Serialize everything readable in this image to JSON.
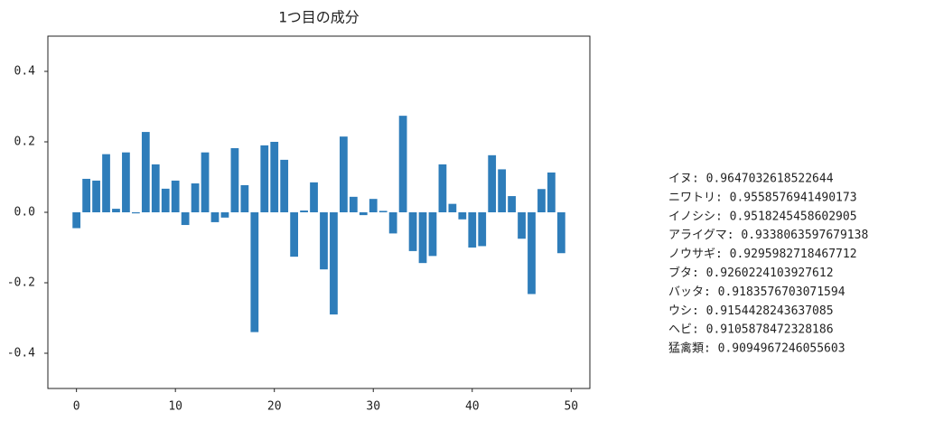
{
  "chart_data": {
    "type": "bar",
    "title": "1つ目の成分",
    "x": [
      0,
      1,
      2,
      3,
      4,
      5,
      6,
      7,
      8,
      9,
      10,
      11,
      12,
      13,
      14,
      15,
      16,
      17,
      18,
      19,
      20,
      21,
      22,
      23,
      24,
      25,
      26,
      27,
      28,
      29,
      30,
      31,
      32,
      33,
      34,
      35,
      36,
      37,
      38,
      39,
      40,
      41,
      42,
      43,
      44,
      45,
      46,
      47,
      48,
      49
    ],
    "values": [
      -0.045,
      0.095,
      0.09,
      0.165,
      0.01,
      0.17,
      -0.003,
      0.228,
      0.136,
      0.067,
      0.09,
      -0.036,
      0.082,
      0.17,
      -0.028,
      -0.015,
      0.182,
      0.077,
      -0.34,
      0.19,
      0.2,
      0.149,
      -0.126,
      0.005,
      0.085,
      -0.162,
      -0.29,
      0.215,
      0.044,
      -0.008,
      0.038,
      0.004,
      -0.06,
      0.274,
      -0.11,
      -0.144,
      -0.124,
      0.136,
      0.024,
      -0.02,
      -0.1,
      -0.096,
      0.162,
      0.122,
      0.046,
      -0.075,
      -0.232,
      0.066,
      0.113,
      -0.116
    ],
    "color": "#2e7dba",
    "xlim": [
      -2.89,
      51.89
    ],
    "xticks": [
      0,
      10,
      20,
      30,
      40,
      50
    ],
    "ylim": [
      -0.5,
      0.5
    ],
    "yticks": [
      -0.4,
      -0.2,
      {
        "value": 0,
        "label": "0.0"
      },
      0.2,
      0.4
    ],
    "annotations": [
      "イヌ: 0.9647032618522644",
      "ニワトリ: 0.9558576941490173",
      "イノシシ: 0.9518245458602905",
      "アライグマ: 0.9338063597679138",
      "ノウサギ: 0.9295982718467712",
      "ブタ: 0.9260224103927612",
      "バッタ: 0.9183576703071594",
      "ウシ: 0.9154428243637085",
      "ヘビ: 0.9105878472328186",
      "猛禽類: 0.9094967246055603"
    ]
  }
}
